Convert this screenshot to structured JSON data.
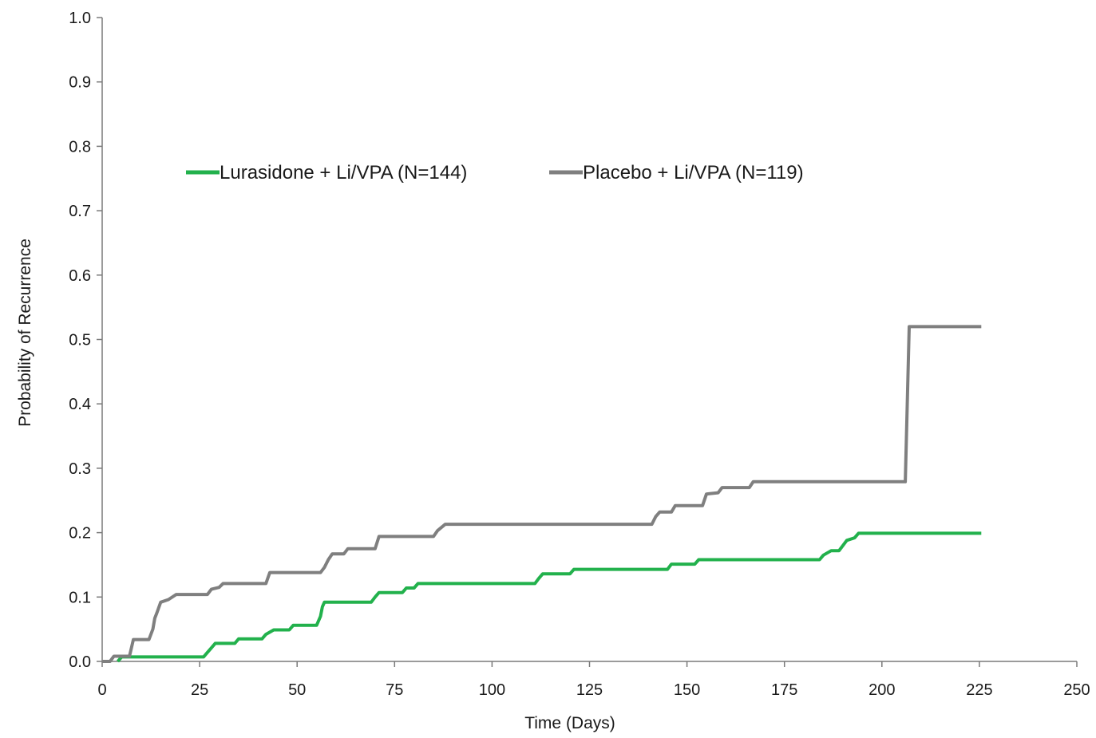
{
  "chart_data": {
    "type": "line",
    "title": "",
    "xlabel": "Time (Days)",
    "ylabel": "Probability of Recurrence",
    "xlim": [
      0,
      250
    ],
    "ylim": [
      0,
      1.0
    ],
    "xticks": [
      "0",
      "25",
      "50",
      "75",
      "100",
      "125",
      "150",
      "175",
      "200",
      "225",
      "250"
    ],
    "yticks": [
      "0.0",
      "0.1",
      "0.2",
      "0.3",
      "0.4",
      "0.5",
      "0.6",
      "0.7",
      "0.8",
      "0.9",
      "1.0"
    ],
    "grid": false,
    "legend_position": "upper-left",
    "series": [
      {
        "name": "Lurasidone + Li/VPA (N=144)",
        "color": "#22b14c",
        "step": true,
        "points": [
          [
            4,
            0
          ],
          [
            5,
            0.007
          ],
          [
            26,
            0.007
          ],
          [
            27,
            0.014
          ],
          [
            28,
            0.021
          ],
          [
            29,
            0.028
          ],
          [
            34,
            0.028
          ],
          [
            35,
            0.035
          ],
          [
            41,
            0.035
          ],
          [
            42,
            0.042
          ],
          [
            44,
            0.049
          ],
          [
            48,
            0.049
          ],
          [
            49,
            0.056
          ],
          [
            55,
            0.056
          ],
          [
            56,
            0.07
          ],
          [
            56.5,
            0.085
          ],
          [
            57,
            0.092
          ],
          [
            69,
            0.092
          ],
          [
            70,
            0.1
          ],
          [
            71,
            0.107
          ],
          [
            77,
            0.107
          ],
          [
            78,
            0.114
          ],
          [
            80,
            0.114
          ],
          [
            81,
            0.121
          ],
          [
            111,
            0.121
          ],
          [
            112,
            0.129
          ],
          [
            113,
            0.136
          ],
          [
            120,
            0.136
          ],
          [
            121,
            0.143
          ],
          [
            145,
            0.143
          ],
          [
            146,
            0.151
          ],
          [
            152,
            0.151
          ],
          [
            153,
            0.158
          ],
          [
            184,
            0.158
          ],
          [
            185,
            0.165
          ],
          [
            187,
            0.172
          ],
          [
            189,
            0.172
          ],
          [
            190,
            0.18
          ],
          [
            191,
            0.188
          ],
          [
            193,
            0.192
          ],
          [
            194,
            0.199
          ],
          [
            225.5,
            0.199
          ]
        ]
      },
      {
        "name": "Placebo + Li/VPA (N=119)",
        "color": "#7f7f7f",
        "step": true,
        "points": [
          [
            0,
            0
          ],
          [
            2,
            0
          ],
          [
            3,
            0.008
          ],
          [
            7,
            0.008
          ],
          [
            8,
            0.034
          ],
          [
            12,
            0.034
          ],
          [
            13,
            0.05
          ],
          [
            13.5,
            0.067
          ],
          [
            14,
            0.075
          ],
          [
            15,
            0.092
          ],
          [
            17,
            0.096
          ],
          [
            19,
            0.104
          ],
          [
            27,
            0.104
          ],
          [
            28,
            0.112
          ],
          [
            30,
            0.115
          ],
          [
            31,
            0.121
          ],
          [
            42,
            0.121
          ],
          [
            43,
            0.138
          ],
          [
            56,
            0.138
          ],
          [
            57,
            0.146
          ],
          [
            58,
            0.158
          ],
          [
            59,
            0.167
          ],
          [
            62,
            0.167
          ],
          [
            63,
            0.175
          ],
          [
            70,
            0.175
          ],
          [
            71,
            0.194
          ],
          [
            85,
            0.194
          ],
          [
            86,
            0.203
          ],
          [
            88,
            0.213
          ],
          [
            141,
            0.213
          ],
          [
            142,
            0.225
          ],
          [
            143,
            0.232
          ],
          [
            146,
            0.232
          ],
          [
            147,
            0.242
          ],
          [
            154,
            0.242
          ],
          [
            155,
            0.26
          ],
          [
            158,
            0.262
          ],
          [
            159,
            0.27
          ],
          [
            166,
            0.27
          ],
          [
            167,
            0.279
          ],
          [
            206,
            0.279
          ],
          [
            207,
            0.52
          ],
          [
            225.5,
            0.52
          ]
        ]
      }
    ]
  }
}
